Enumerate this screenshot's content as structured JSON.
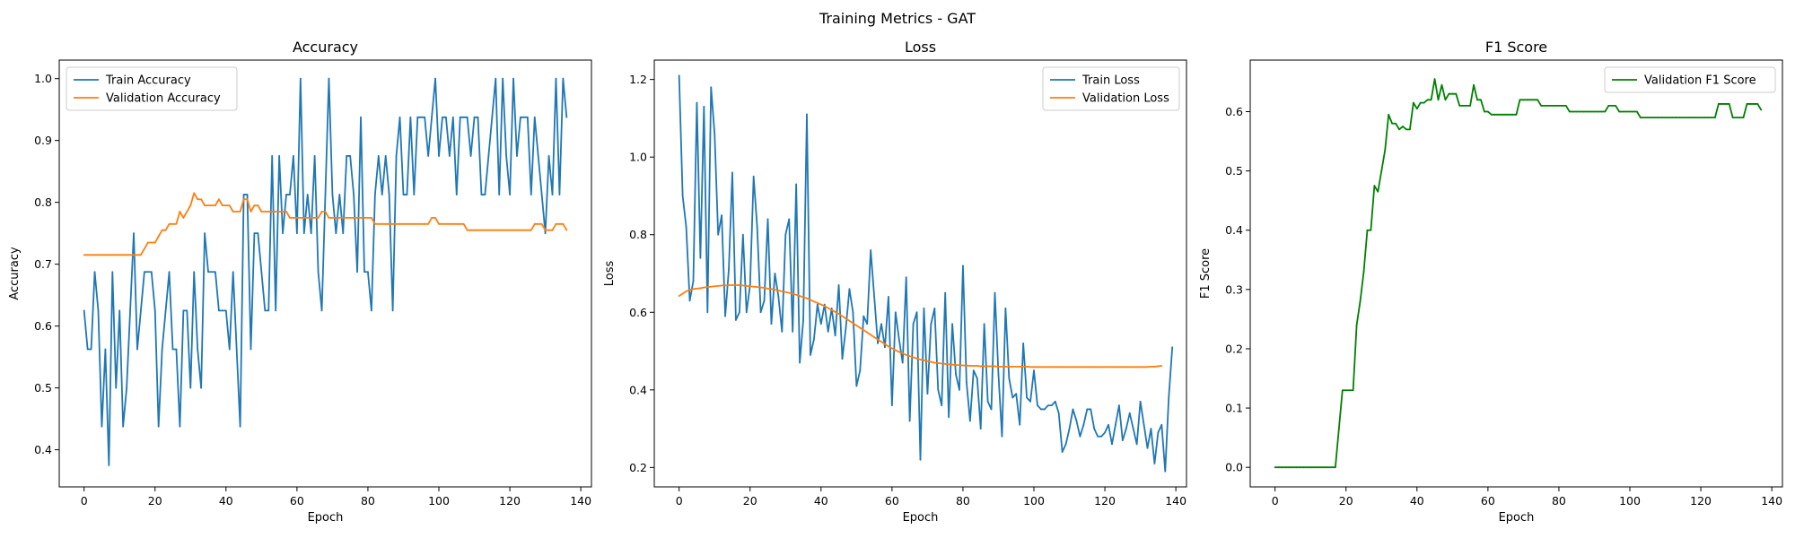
{
  "suptitle": "Training Metrics - GAT",
  "chart_data": [
    {
      "type": "line",
      "title": "Accuracy",
      "xlabel": "Epoch",
      "ylabel": "Accuracy",
      "xlim": [
        -7,
        143
      ],
      "ylim": [
        0.34,
        1.03
      ],
      "xticks": [
        0,
        20,
        40,
        60,
        80,
        100,
        120,
        140
      ],
      "yticks": [
        0.4,
        0.5,
        0.6,
        0.7,
        0.8,
        0.9,
        1.0
      ],
      "ytick_labels": [
        "0.4",
        "0.5",
        "0.6",
        "0.7",
        "0.8",
        "0.9",
        "1.0"
      ],
      "legend": "top-left",
      "series": [
        {
          "name": "Train Accuracy",
          "color": "#1f77b4",
          "values": [
            0.625,
            0.5625,
            0.5625,
            0.6875,
            0.625,
            0.4375,
            0.5625,
            0.375,
            0.6875,
            0.5,
            0.625,
            0.4375,
            0.5,
            0.625,
            0.75,
            0.5625,
            0.625,
            0.6875,
            0.6875,
            0.6875,
            0.625,
            0.4375,
            0.5625,
            0.625,
            0.6875,
            0.5625,
            0.5625,
            0.4375,
            0.625,
            0.625,
            0.5,
            0.6875,
            0.5625,
            0.5,
            0.75,
            0.6875,
            0.6875,
            0.6875,
            0.625,
            0.625,
            0.625,
            0.5625,
            0.6875,
            0.5625,
            0.4375,
            0.8125,
            0.8125,
            0.5625,
            0.75,
            0.75,
            0.6875,
            0.625,
            0.625,
            0.875,
            0.625,
            0.875,
            0.75,
            0.8125,
            0.8125,
            0.875,
            0.75,
            1.0,
            0.75,
            0.8125,
            0.75,
            0.875,
            0.6875,
            0.625,
            0.8125,
            1.0,
            0.8125,
            0.75,
            0.8125,
            0.75,
            0.875,
            0.875,
            0.8125,
            0.6875,
            0.9375,
            0.6875,
            0.6875,
            0.625,
            0.8125,
            0.875,
            0.8125,
            0.875,
            0.8125,
            0.625,
            0.875,
            0.9375,
            0.8125,
            0.8125,
            0.9375,
            0.8125,
            0.9375,
            0.9375,
            0.9375,
            0.875,
            0.9375,
            1.0,
            0.875,
            0.9375,
            0.9375,
            0.875,
            0.9375,
            0.8125,
            0.9375,
            0.9375,
            0.9375,
            0.875,
            0.9375,
            0.9375,
            0.8125,
            0.8125,
            0.875,
            0.9375,
            1.0,
            0.8125,
            1.0,
            0.875,
            0.8125,
            1.0,
            0.875,
            0.9375,
            0.9375,
            0.9375,
            0.8125,
            0.9375,
            0.875,
            0.8125,
            0.75,
            0.875,
            0.8125,
            1.0,
            0.8125,
            1.0,
            0.9375
          ]
        },
        {
          "name": "Validation Accuracy",
          "color": "#ff7f0e",
          "values": [
            0.715,
            0.715,
            0.715,
            0.715,
            0.715,
            0.715,
            0.715,
            0.715,
            0.715,
            0.715,
            0.715,
            0.715,
            0.715,
            0.715,
            0.715,
            0.715,
            0.715,
            0.725,
            0.735,
            0.735,
            0.735,
            0.745,
            0.755,
            0.755,
            0.765,
            0.765,
            0.765,
            0.785,
            0.775,
            0.785,
            0.795,
            0.815,
            0.805,
            0.805,
            0.795,
            0.795,
            0.795,
            0.795,
            0.805,
            0.795,
            0.795,
            0.795,
            0.785,
            0.785,
            0.785,
            0.805,
            0.805,
            0.785,
            0.795,
            0.795,
            0.785,
            0.785,
            0.785,
            0.785,
            0.785,
            0.785,
            0.785,
            0.785,
            0.775,
            0.775,
            0.775,
            0.775,
            0.775,
            0.775,
            0.775,
            0.775,
            0.775,
            0.785,
            0.785,
            0.775,
            0.775,
            0.775,
            0.775,
            0.775,
            0.775,
            0.775,
            0.775,
            0.775,
            0.775,
            0.775,
            0.775,
            0.775,
            0.765,
            0.765,
            0.765,
            0.765,
            0.765,
            0.765,
            0.765,
            0.765,
            0.765,
            0.765,
            0.765,
            0.765,
            0.765,
            0.765,
            0.765,
            0.765,
            0.775,
            0.775,
            0.765,
            0.765,
            0.765,
            0.765,
            0.765,
            0.765,
            0.765,
            0.765,
            0.755,
            0.755,
            0.755,
            0.755,
            0.755,
            0.755,
            0.755,
            0.755,
            0.755,
            0.755,
            0.755,
            0.755,
            0.755,
            0.755,
            0.755,
            0.755,
            0.755,
            0.755,
            0.755,
            0.765,
            0.765,
            0.765,
            0.755,
            0.755,
            0.755,
            0.765,
            0.765,
            0.765,
            0.755
          ]
        }
      ]
    },
    {
      "type": "line",
      "title": "Loss",
      "xlabel": "Epoch",
      "ylabel": "Loss",
      "xlim": [
        -7,
        143
      ],
      "ylim": [
        0.15,
        1.25
      ],
      "xticks": [
        0,
        20,
        40,
        60,
        80,
        100,
        120,
        140
      ],
      "yticks": [
        0.2,
        0.4,
        0.6,
        0.8,
        1.0,
        1.2
      ],
      "ytick_labels": [
        "0.2",
        "0.4",
        "0.6",
        "0.8",
        "1.0",
        "1.2"
      ],
      "legend": "top-right",
      "series": [
        {
          "name": "Train Loss",
          "color": "#1f77b4",
          "values": [
            1.21,
            0.9,
            0.82,
            0.63,
            0.68,
            1.14,
            0.74,
            1.13,
            0.6,
            1.18,
            1.06,
            0.8,
            0.85,
            0.59,
            0.71,
            0.96,
            0.58,
            0.6,
            0.8,
            0.6,
            0.67,
            0.95,
            0.82,
            0.6,
            0.63,
            0.84,
            0.57,
            0.7,
            0.64,
            0.55,
            0.8,
            0.84,
            0.55,
            0.93,
            0.47,
            0.58,
            1.11,
            0.49,
            0.53,
            0.62,
            0.57,
            0.62,
            0.55,
            0.61,
            0.54,
            0.67,
            0.48,
            0.56,
            0.66,
            0.6,
            0.41,
            0.45,
            0.59,
            0.57,
            0.76,
            0.64,
            0.52,
            0.57,
            0.51,
            0.64,
            0.36,
            0.6,
            0.53,
            0.47,
            0.69,
            0.32,
            0.57,
            0.6,
            0.22,
            0.61,
            0.39,
            0.57,
            0.61,
            0.4,
            0.36,
            0.65,
            0.33,
            0.57,
            0.44,
            0.4,
            0.72,
            0.42,
            0.32,
            0.45,
            0.43,
            0.3,
            0.57,
            0.37,
            0.35,
            0.65,
            0.44,
            0.28,
            0.61,
            0.43,
            0.38,
            0.39,
            0.31,
            0.52,
            0.38,
            0.37,
            0.45,
            0.36,
            0.35,
            0.35,
            0.36,
            0.36,
            0.37,
            0.34,
            0.24,
            0.26,
            0.3,
            0.35,
            0.32,
            0.28,
            0.31,
            0.35,
            0.35,
            0.3,
            0.28,
            0.28,
            0.29,
            0.31,
            0.26,
            0.31,
            0.36,
            0.27,
            0.3,
            0.34,
            0.3,
            0.26,
            0.37,
            0.31,
            0.25,
            0.3,
            0.21,
            0.29,
            0.31,
            0.19,
            0.38,
            0.51
          ]
        },
        {
          "name": "Validation Loss",
          "color": "#ff7f0e",
          "values": [
            0.642,
            0.648,
            0.654,
            0.658,
            0.66,
            0.661,
            0.662,
            0.664,
            0.665,
            0.666,
            0.667,
            0.668,
            0.669,
            0.669,
            0.67,
            0.67,
            0.67,
            0.67,
            0.669,
            0.668,
            0.667,
            0.666,
            0.665,
            0.664,
            0.663,
            0.661,
            0.66,
            0.658,
            0.656,
            0.654,
            0.652,
            0.65,
            0.648,
            0.645,
            0.642,
            0.639,
            0.636,
            0.632,
            0.628,
            0.624,
            0.62,
            0.616,
            0.611,
            0.606,
            0.601,
            0.596,
            0.59,
            0.584,
            0.578,
            0.572,
            0.566,
            0.56,
            0.554,
            0.548,
            0.542,
            0.536,
            0.53,
            0.524,
            0.518,
            0.512,
            0.507,
            0.502,
            0.498,
            0.494,
            0.49,
            0.487,
            0.484,
            0.481,
            0.478,
            0.476,
            0.474,
            0.472,
            0.47,
            0.469,
            0.468,
            0.467,
            0.466,
            0.465,
            0.464,
            0.464,
            0.463,
            0.463,
            0.462,
            0.462,
            0.462,
            0.461,
            0.461,
            0.461,
            0.461,
            0.461,
            0.46,
            0.46,
            0.46,
            0.46,
            0.46,
            0.46,
            0.46,
            0.46,
            0.46,
            0.459,
            0.459,
            0.459,
            0.459,
            0.459,
            0.459,
            0.459,
            0.459,
            0.459,
            0.459,
            0.459,
            0.459,
            0.459,
            0.459,
            0.459,
            0.459,
            0.459,
            0.459,
            0.459,
            0.459,
            0.459,
            0.459,
            0.459,
            0.459,
            0.459,
            0.459,
            0.459,
            0.459,
            0.459,
            0.459,
            0.459,
            0.459,
            0.459,
            0.459,
            0.46,
            0.46,
            0.461,
            0.462
          ]
        }
      ]
    },
    {
      "type": "line",
      "title": "F1 Score",
      "xlabel": "Epoch",
      "ylabel": "F1 Score",
      "xlim": [
        -7,
        143
      ],
      "ylim": [
        -0.033,
        0.687
      ],
      "xticks": [
        0,
        20,
        40,
        60,
        80,
        100,
        120,
        140
      ],
      "yticks": [
        0.0,
        0.1,
        0.2,
        0.3,
        0.4,
        0.5,
        0.6
      ],
      "ytick_labels": [
        "0.0",
        "0.1",
        "0.2",
        "0.3",
        "0.4",
        "0.5",
        "0.6"
      ],
      "legend": "top-right",
      "series": [
        {
          "name": "Validation F1 Score",
          "color": "#008000",
          "values": [
            0.0,
            0.0,
            0.0,
            0.0,
            0.0,
            0.0,
            0.0,
            0.0,
            0.0,
            0.0,
            0.0,
            0.0,
            0.0,
            0.0,
            0.0,
            0.0,
            0.0,
            0.0,
            0.065,
            0.13,
            0.13,
            0.13,
            0.13,
            0.24,
            0.28,
            0.33,
            0.4,
            0.4,
            0.475,
            0.465,
            0.5,
            0.535,
            0.595,
            0.58,
            0.58,
            0.57,
            0.575,
            0.57,
            0.57,
            0.615,
            0.605,
            0.615,
            0.615,
            0.62,
            0.62,
            0.655,
            0.62,
            0.645,
            0.62,
            0.63,
            0.63,
            0.63,
            0.61,
            0.61,
            0.61,
            0.61,
            0.645,
            0.62,
            0.62,
            0.6,
            0.6,
            0.595,
            0.595,
            0.595,
            0.595,
            0.595,
            0.595,
            0.595,
            0.595,
            0.62,
            0.62,
            0.62,
            0.62,
            0.62,
            0.62,
            0.61,
            0.61,
            0.61,
            0.61,
            0.61,
            0.61,
            0.61,
            0.61,
            0.6,
            0.6,
            0.6,
            0.6,
            0.6,
            0.6,
            0.6,
            0.6,
            0.6,
            0.6,
            0.6,
            0.61,
            0.61,
            0.61,
            0.6,
            0.6,
            0.6,
            0.6,
            0.6,
            0.6,
            0.59,
            0.59,
            0.59,
            0.59,
            0.59,
            0.59,
            0.59,
            0.59,
            0.59,
            0.59,
            0.59,
            0.59,
            0.59,
            0.59,
            0.59,
            0.59,
            0.59,
            0.59,
            0.59,
            0.59,
            0.59,
            0.59,
            0.613,
            0.613,
            0.613,
            0.613,
            0.59,
            0.59,
            0.59,
            0.59,
            0.613,
            0.613,
            0.613,
            0.613,
            0.603
          ]
        }
      ]
    }
  ]
}
